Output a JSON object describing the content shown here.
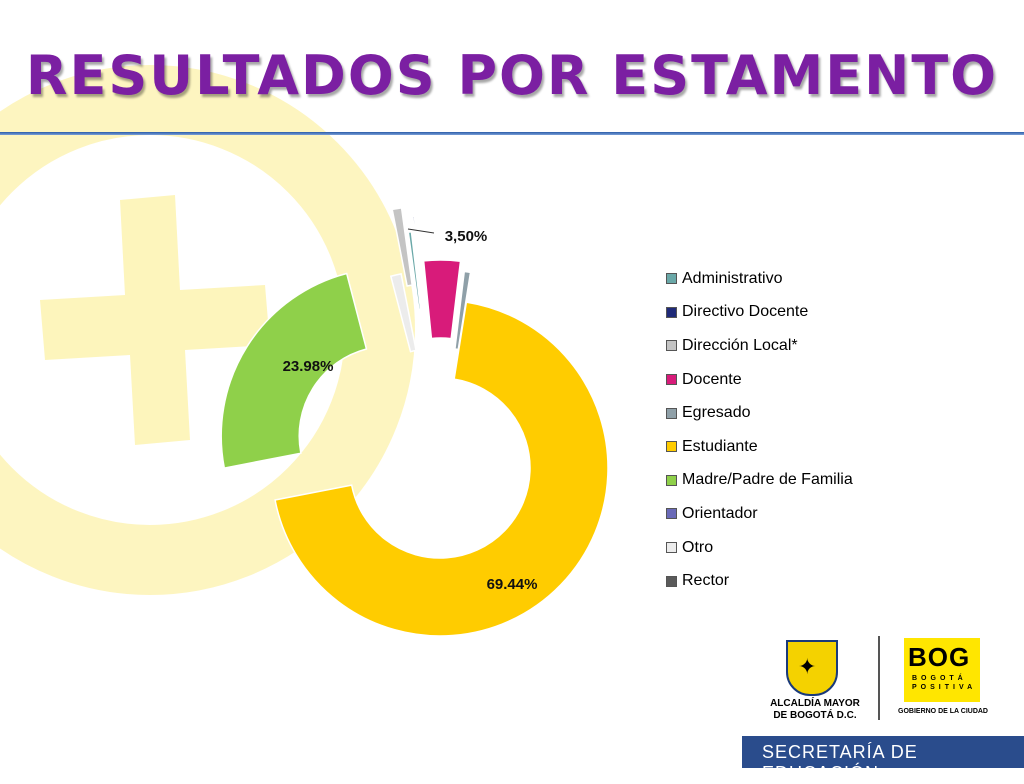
{
  "header": {
    "title": "RESULTADOS POR ESTAMENTO"
  },
  "chart_data": {
    "type": "pie",
    "donut": true,
    "categories": [
      "Administrativo",
      "Directivo Docente",
      "Dirección Local*",
      "Docente",
      "Egresado",
      "Estudiante",
      "Madre/Padre de Familia",
      "Orientador",
      "Otro",
      "Rector"
    ],
    "values": [
      0.3,
      0.15,
      0.9,
      3.5,
      0.6,
      69.44,
      23.98,
      0.05,
      1.0,
      0.08
    ],
    "data_labels": {
      "Docente": "3,50%",
      "Estudiante": "69.44%",
      "Madre/Padre de Familia": "23.98%"
    },
    "colors": [
      "#6aa8a8",
      "#1f2a78",
      "#c4c4c4",
      "#d81b7a",
      "#8fa0a8",
      "#ffcc00",
      "#8fd04a",
      "#6a6ab8",
      "#ececec",
      "#5a5a5a"
    ],
    "legend_position": "right"
  },
  "logos": {
    "alcaldia": "ALCALDÍA MAYOR\nDE BOGOTÁ D.C.",
    "bog": "BOG",
    "bog_sub": "BOGOTÁ\nPOSITIVA",
    "gobierno": "GOBIERNO DE LA CIUDAD"
  },
  "footer": {
    "text": "SECRETARÍA DE EDUCACIÓN"
  },
  "theme": {
    "accent": "#7b1fa2",
    "background_shape": "#fdf3a8",
    "footer_bg": "#2a4c8c"
  }
}
